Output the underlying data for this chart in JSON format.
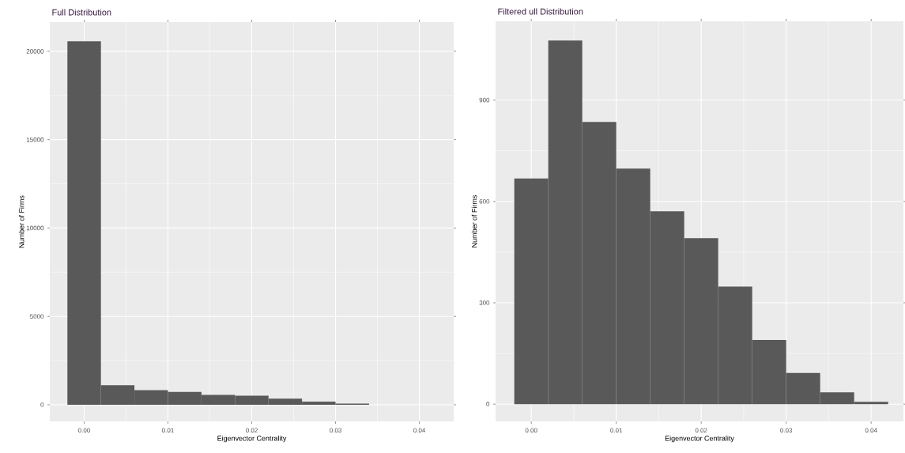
{
  "chart_data": [
    {
      "type": "histogram",
      "title": "Full Distribution",
      "xlabel": "Eigenvector Centrality",
      "ylabel": "Number of Firms",
      "color": "#595959",
      "bins": [
        -0.002,
        0.002,
        0.006,
        0.01,
        0.014,
        0.018,
        0.022,
        0.026,
        0.03,
        0.034
      ],
      "values": [
        20560,
        1110,
        830,
        730,
        560,
        510,
        350,
        180,
        65
      ],
      "xlim": [
        -0.0041,
        0.0441
      ],
      "ylim": [
        -940,
        21650
      ],
      "xticks": [
        {
          "value": 0,
          "label": "0.00"
        },
        {
          "value": 0.01,
          "label": "0.01"
        },
        {
          "value": 0.02,
          "label": "0.02"
        },
        {
          "value": 0.03,
          "label": "0.03"
        },
        {
          "value": 0.04,
          "label": "0.04"
        }
      ],
      "yticks": [
        0,
        5000,
        10000,
        15000,
        20000
      ],
      "grid": true
    },
    {
      "type": "histogram",
      "title": "Filtered ull Distribution",
      "xlabel": "Eigenvector Centrality",
      "ylabel": "Number of Firms",
      "color": "#595959",
      "bins": [
        -0.002,
        0.002,
        0.006,
        0.01,
        0.014,
        0.018,
        0.022,
        0.026,
        0.03,
        0.034,
        0.038,
        0.042
      ],
      "values": [
        668,
        1076,
        835,
        697,
        571,
        491,
        348,
        190,
        92,
        35,
        7
      ],
      "xlim": [
        -0.0042,
        0.0438
      ],
      "ylim": [
        -51,
        1133
      ],
      "xticks": [
        {
          "value": 0,
          "label": "0.00"
        },
        {
          "value": 0.01,
          "label": "0.01"
        },
        {
          "value": 0.02,
          "label": "0.02"
        },
        {
          "value": 0.03,
          "label": "0.03"
        },
        {
          "value": 0.04,
          "label": "0.04"
        }
      ],
      "yticks": [
        0,
        300,
        600,
        900
      ],
      "grid": true
    }
  ]
}
